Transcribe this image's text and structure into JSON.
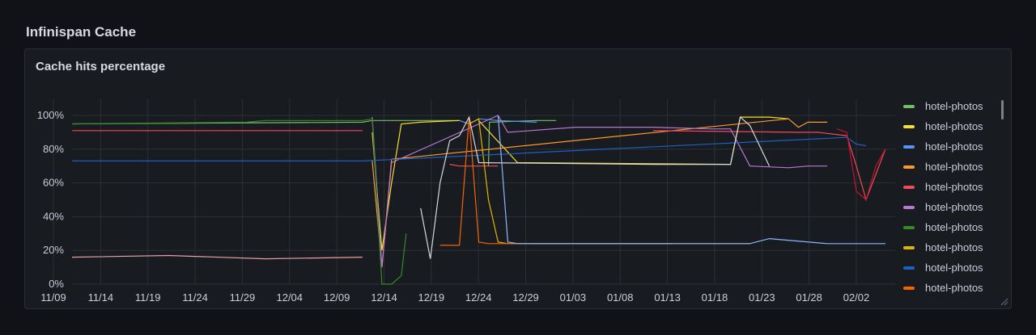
{
  "row_title": "Infinispan Cache",
  "panel": {
    "title": "Cache hits percentage"
  },
  "chart_data": {
    "type": "line",
    "title": "Cache hits percentage",
    "x_ticks": [
      "11/09",
      "11/14",
      "11/19",
      "11/24",
      "11/29",
      "12/04",
      "12/09",
      "12/14",
      "12/19",
      "12/24",
      "12/29",
      "01/03",
      "01/08",
      "01/13",
      "01/18",
      "01/23",
      "01/28",
      "02/02"
    ],
    "y_ticks": [
      "0%",
      "20%",
      "40%",
      "60%",
      "80%",
      "100%"
    ],
    "ylim": [
      0,
      100
    ],
    "grid": true,
    "legend_position": "right",
    "series": [
      {
        "name": "hotel-photos",
        "color": "#73bf69",
        "x": [
          0,
          30,
          31,
          36,
          37,
          40,
          40.1,
          43,
          43.1,
          48,
          50
        ],
        "y": [
          95,
          96,
          97,
          97,
          97,
          97,
          null,
          70,
          96,
          97,
          97
        ]
      },
      {
        "name": "hotel-photos",
        "color": "#fade2a",
        "x": [
          31,
          32,
          33,
          34,
          36,
          40,
          40.1,
          42,
          46,
          68,
          69,
          72,
          74
        ],
        "y": [
          90,
          20,
          60,
          95,
          96,
          97,
          null,
          97,
          72,
          71,
          99,
          99,
          98
        ]
      },
      {
        "name": "hotel-photos",
        "color": "#5794f2",
        "x": [
          40,
          41,
          42,
          44,
          48
        ],
        "y": [
          97,
          95,
          98,
          97,
          96
        ]
      },
      {
        "name": "hotel-photos",
        "color": "#ff9830",
        "x": [
          31,
          32,
          33,
          74,
          75,
          76,
          78
        ],
        "y": [
          73,
          10,
          74,
          98,
          93,
          96,
          96
        ]
      },
      {
        "name": "hotel-photos",
        "color": "#f2495c",
        "x": [
          0,
          30,
          30.1,
          39,
          40,
          44,
          44.1,
          60,
          75,
          77,
          80,
          81,
          82,
          84
        ],
        "y": [
          91,
          91,
          null,
          71,
          70,
          70,
          null,
          91,
          90,
          90,
          88,
          70,
          50,
          80
        ]
      },
      {
        "name": "hotel-photos",
        "color": "#b877d9",
        "x": [
          31,
          32,
          33,
          44,
          45,
          52,
          60,
          66,
          68,
          70,
          74,
          76,
          78
        ],
        "y": [
          99,
          10,
          72,
          100,
          90,
          93,
          93,
          92,
          92,
          70,
          69,
          70,
          70
        ]
      },
      {
        "name": "hotel-photos",
        "color": "#37872d",
        "x": [
          0,
          18,
          20,
          30,
          31,
          32,
          33,
          34,
          34.5
        ],
        "y": [
          95,
          96,
          97,
          97,
          98,
          0,
          0,
          5,
          30
        ]
      },
      {
        "name": "hotel-photos",
        "color": "#e0b400",
        "x": [
          41,
          42,
          43,
          44,
          45,
          60,
          61,
          62
        ],
        "y": [
          95,
          98,
          50,
          25,
          24,
          24,
          24,
          24
        ]
      },
      {
        "name": "hotel-photos",
        "color": "#1f60c4",
        "x": [
          0,
          30,
          80,
          81,
          82
        ],
        "y": [
          73,
          73,
          87,
          83,
          82
        ]
      },
      {
        "name": "hotel-photos",
        "color": "#fa6400",
        "x": [
          38,
          39,
          40,
          41,
          42,
          43,
          44,
          60,
          70
        ],
        "y": [
          23,
          23,
          23,
          99,
          25,
          24,
          24,
          24,
          24
        ]
      },
      {
        "name": "hotel-photos",
        "color": "#e8a0a0",
        "x": [
          0,
          10,
          20,
          30
        ],
        "y": [
          16,
          17,
          15,
          16
        ]
      },
      {
        "name": "hotel-photos",
        "color": "#d9d9d9",
        "x": [
          36,
          37,
          38,
          39,
          40,
          41,
          42,
          60,
          68,
          69,
          70,
          72
        ],
        "y": [
          45,
          15,
          60,
          85,
          88,
          99,
          72,
          71,
          71,
          99,
          94,
          70
        ]
      },
      {
        "name": "hotel-photos",
        "color": "#8ab8ff",
        "x": [
          44,
          45,
          46,
          60,
          70,
          72,
          78,
          80,
          84
        ],
        "y": [
          100,
          25,
          24,
          24,
          24,
          27,
          24,
          24,
          24
        ]
      },
      {
        "name": "hotel-photos",
        "color": "#c4162a",
        "x": [
          79,
          80,
          81,
          82,
          83,
          84
        ],
        "y": [
          92,
          90,
          55,
          50,
          70,
          80
        ]
      }
    ]
  },
  "legend": {
    "items": [
      {
        "label": "hotel-photos",
        "color": "#73bf69"
      },
      {
        "label": "hotel-photos",
        "color": "#fade2a"
      },
      {
        "label": "hotel-photos",
        "color": "#5794f2"
      },
      {
        "label": "hotel-photos",
        "color": "#ff9830"
      },
      {
        "label": "hotel-photos",
        "color": "#f2495c"
      },
      {
        "label": "hotel-photos",
        "color": "#b877d9"
      },
      {
        "label": "hotel-photos",
        "color": "#37872d"
      },
      {
        "label": "hotel-photos",
        "color": "#e0b400"
      },
      {
        "label": "hotel-photos",
        "color": "#1f60c4"
      },
      {
        "label": "hotel-photos",
        "color": "#fa6400"
      }
    ]
  }
}
